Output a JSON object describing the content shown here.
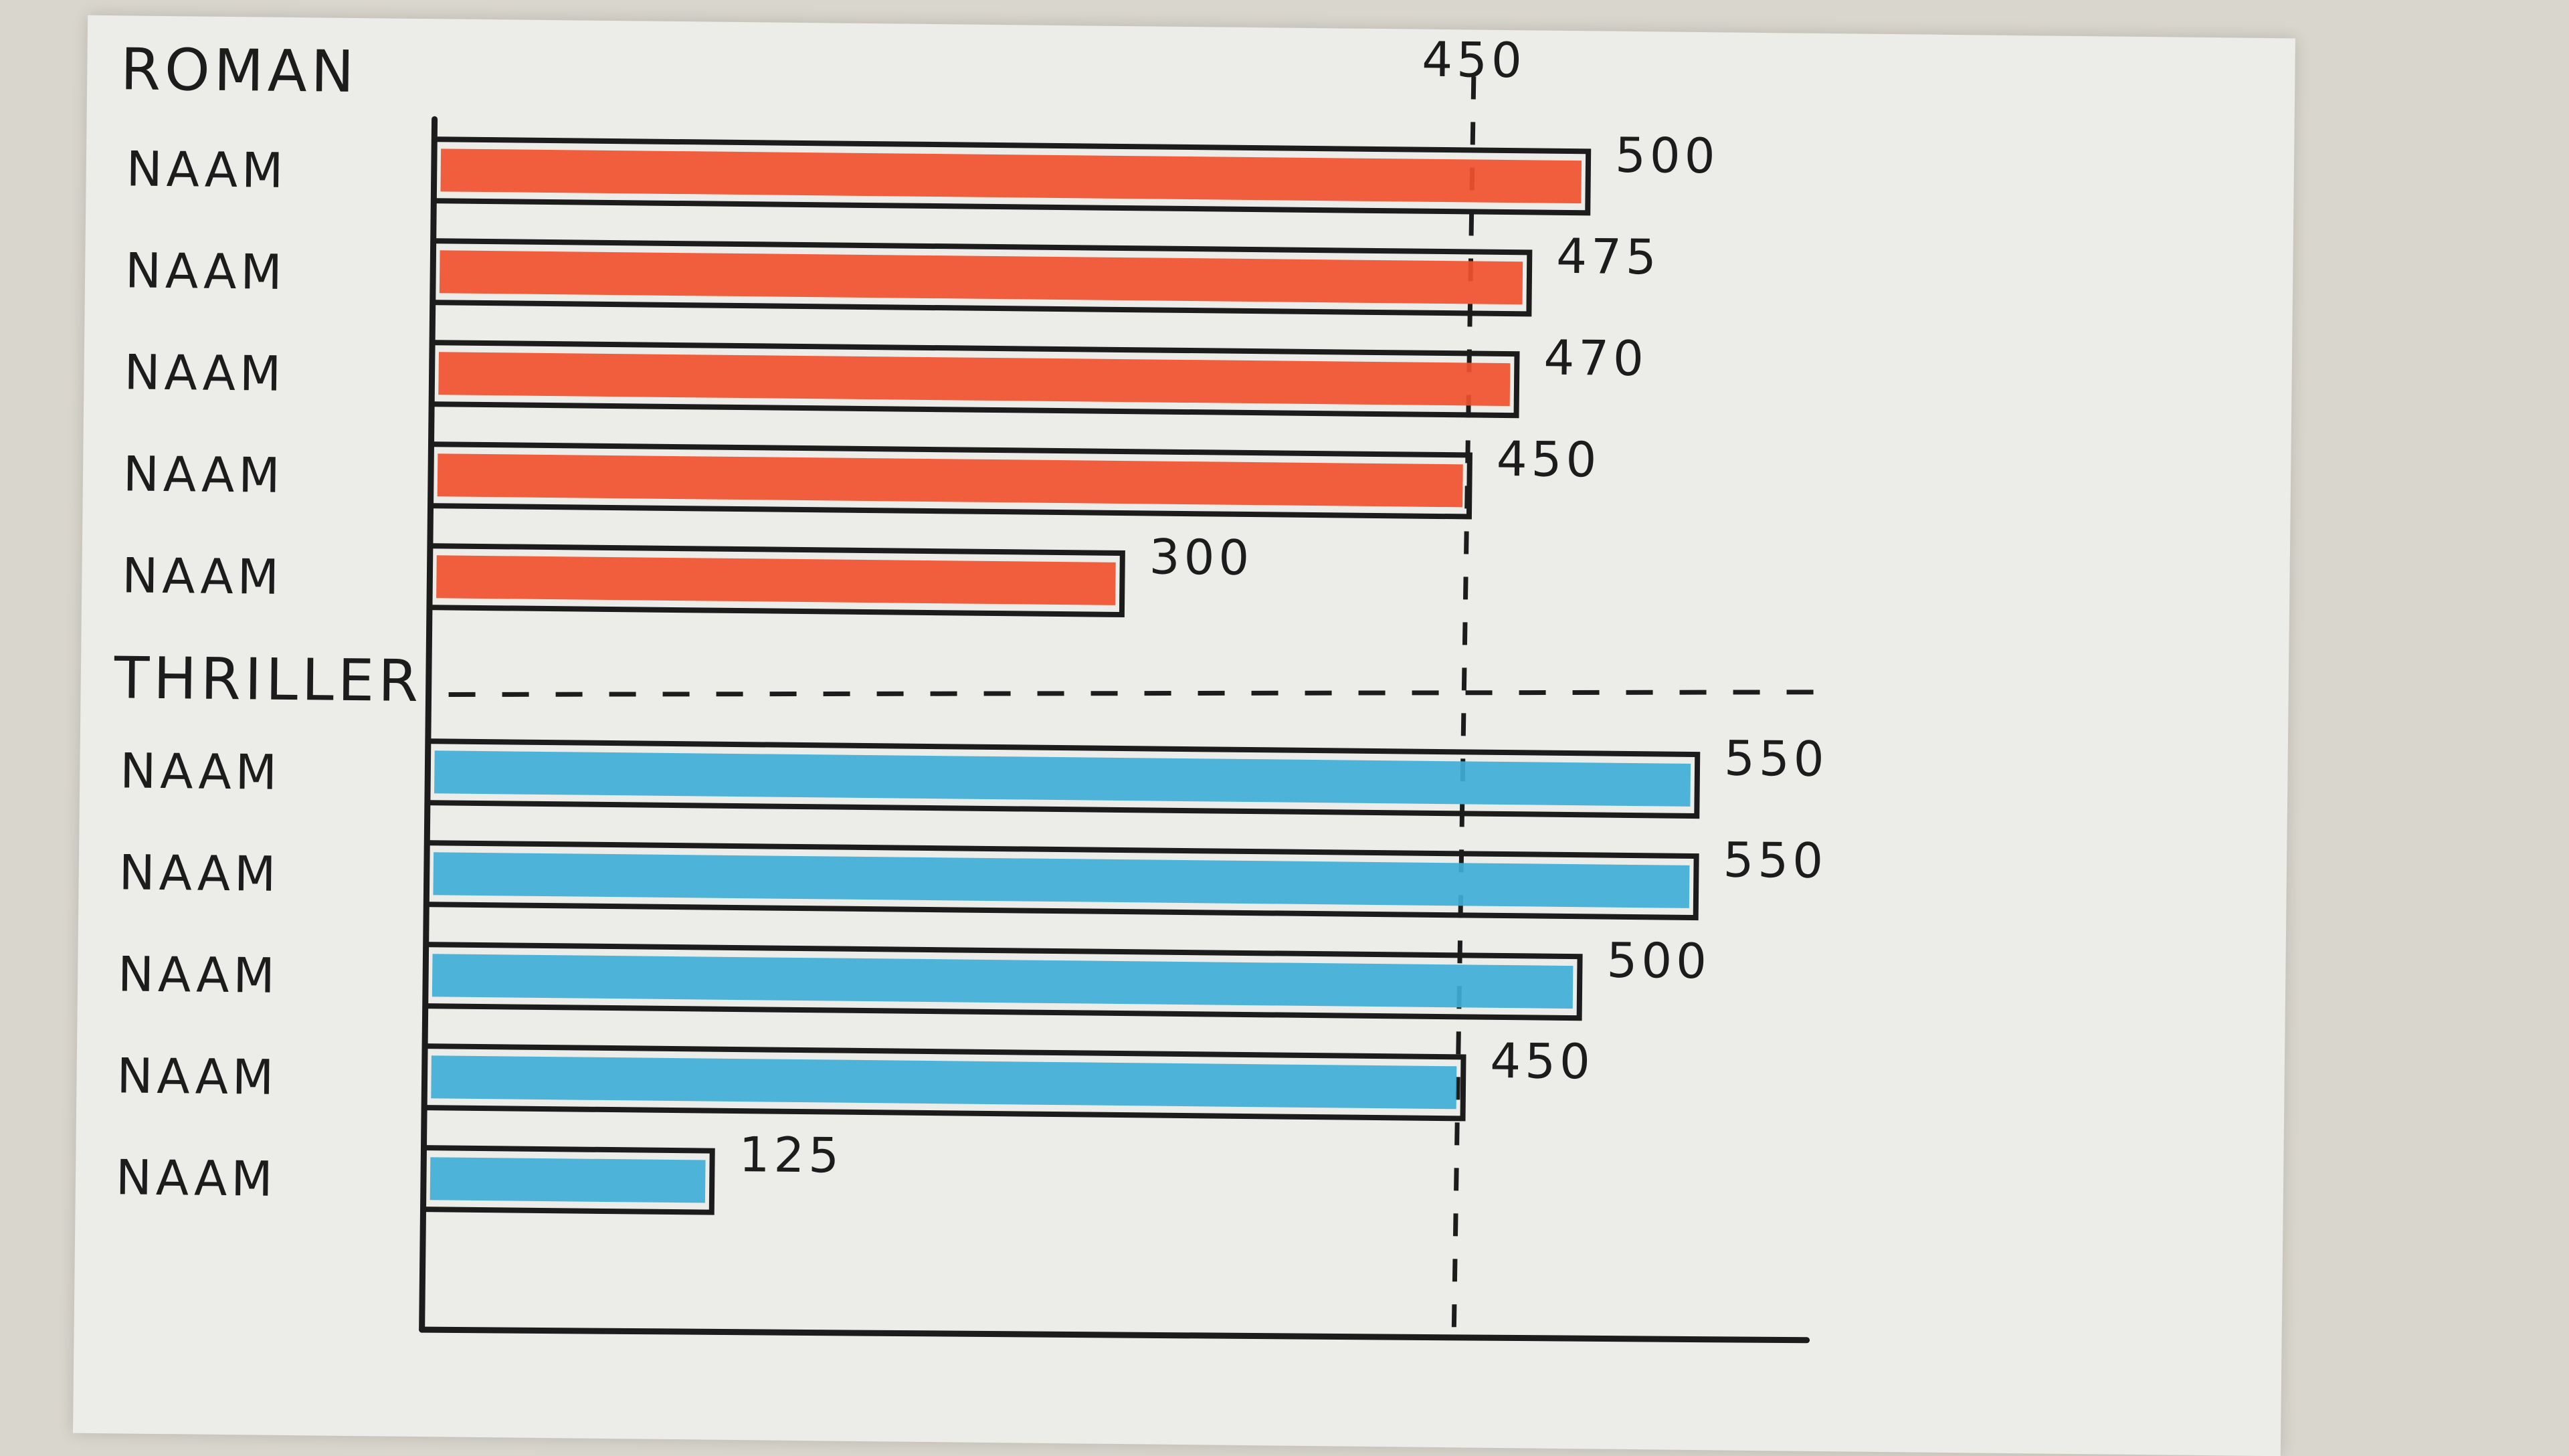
{
  "chart_data": {
    "type": "bar",
    "orientation": "horizontal",
    "title": "",
    "xlabel": "",
    "ylabel": "",
    "xlim": [
      0,
      600
    ],
    "grid": false,
    "reference_line": {
      "value": 450,
      "label": "450"
    },
    "groups": [
      {
        "name": "ROMAN",
        "color": "#f0512f",
        "categories": [
          "NAAM",
          "NAAM",
          "NAAM",
          "NAAM",
          "NAAM"
        ],
        "values": [
          500,
          475,
          470,
          450,
          300
        ],
        "labels": [
          "500",
          "475",
          "470",
          "450",
          "300"
        ]
      },
      {
        "name": "THRILLER",
        "color": "#3faed6",
        "categories": [
          "NAAM",
          "NAAM",
          "NAAM",
          "NAAM",
          "NAAM"
        ],
        "values": [
          550,
          550,
          500,
          450,
          125
        ],
        "labels": [
          "550",
          "550",
          "500",
          "450",
          "125"
        ]
      }
    ]
  }
}
